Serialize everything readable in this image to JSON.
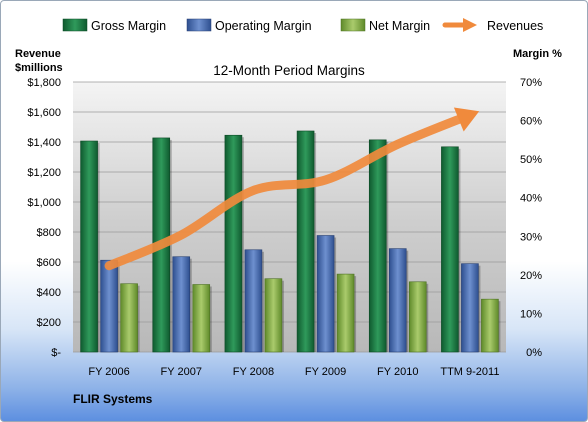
{
  "chart_data": {
    "type": "bar",
    "title": "12-Month Period Margins",
    "footer": "FLIR Systems",
    "y_left_label": [
      "Revenue",
      "$millions"
    ],
    "y_right_label": "Margin %",
    "categories": [
      "FY 2006",
      "FY 2007",
      "FY 2008",
      "FY 2009",
      "FY 2010",
      "TTM 9-2011"
    ],
    "y_left": {
      "min": 0,
      "max": 1800,
      "step": 200,
      "tick_labels": [
        "$-",
        "$200",
        "$400",
        "$600",
        "$800",
        "$1,000",
        "$1,200",
        "$1,400",
        "$1,600",
        "$1,800"
      ]
    },
    "y_right": {
      "min": 0,
      "max": 70,
      "step": 10,
      "tick_labels": [
        "0%",
        "10%",
        "20%",
        "30%",
        "40%",
        "50%",
        "60%",
        "70%"
      ]
    },
    "grid": true,
    "legend_position": "top",
    "series": [
      {
        "name": "Gross Margin",
        "kind": "bar",
        "axis": "right",
        "color": "#1f7a45",
        "values": [
          54.7,
          55.5,
          56.2,
          57.3,
          55.0,
          53.2
        ]
      },
      {
        "name": "Operating Margin",
        "kind": "bar",
        "axis": "right",
        "color": "#4a6fb5",
        "values": [
          23.8,
          24.7,
          26.5,
          30.2,
          26.8,
          22.9
        ]
      },
      {
        "name": "Net Margin",
        "kind": "bar",
        "axis": "right",
        "color": "#8db04d",
        "values": [
          17.7,
          17.5,
          19.0,
          20.2,
          18.2,
          13.7
        ]
      },
      {
        "name": "Revenues",
        "kind": "line",
        "axis": "left",
        "color": "#f08a3c",
        "values": [
          575,
          780,
          1077,
          1147,
          1385,
          1580
        ]
      }
    ]
  }
}
